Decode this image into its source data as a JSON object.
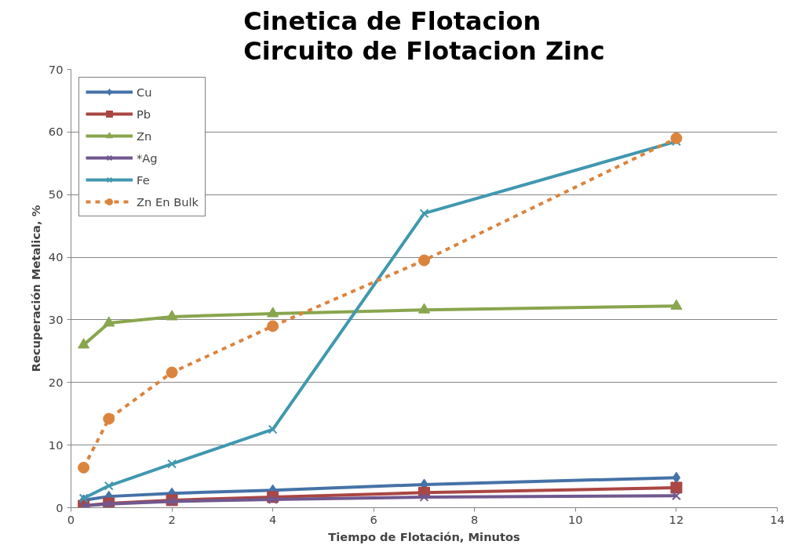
{
  "chart_data": {
    "type": "line",
    "title": "Cinetica de Flotacion\nCircuito de Flotacion Zinc",
    "xlabel": "Tiempo de Flotación, Minutos",
    "ylabel": "Recuperación Metalica, %",
    "x": [
      0.25,
      0.75,
      2,
      4,
      7,
      12
    ],
    "series": [
      {
        "name": "Cu",
        "color": "#4572a7",
        "marker": "diamond",
        "line_style": "solid",
        "values": [
          1.2,
          1.8,
          2.3,
          2.8,
          3.7,
          4.8
        ]
      },
      {
        "name": "Pb",
        "color": "#aa4643",
        "marker": "square",
        "line_style": "solid",
        "values": [
          0.3,
          0.7,
          1.2,
          1.7,
          2.4,
          3.2
        ]
      },
      {
        "name": "Zn",
        "color": "#89a54e",
        "marker": "triangle",
        "line_style": "solid",
        "values": [
          26,
          29.5,
          30.5,
          31,
          31.6,
          32.2
        ]
      },
      {
        "name": "*Ag",
        "color": "#71588f",
        "marker": "cross",
        "line_style": "solid",
        "values": [
          0.3,
          0.6,
          1.0,
          1.3,
          1.7,
          1.9
        ]
      },
      {
        "name": "Fe",
        "color": "#4198af",
        "marker": "cross",
        "line_style": "solid",
        "values": [
          1.5,
          3.5,
          7,
          12.5,
          47,
          58.5
        ]
      },
      {
        "name": "Zn En Bulk",
        "color": "#db843d",
        "marker": "circle",
        "line_style": "dashed",
        "values": [
          6.4,
          14.2,
          21.6,
          29,
          39.5,
          59
        ]
      }
    ],
    "xlim": [
      0,
      14
    ],
    "xticks": [
      0,
      2,
      4,
      6,
      8,
      10,
      12,
      14
    ],
    "ylim": [
      0,
      70
    ],
    "yticks": [
      0,
      10,
      20,
      30,
      40,
      50,
      60,
      70
    ],
    "grid": "y",
    "legend": "top left"
  }
}
